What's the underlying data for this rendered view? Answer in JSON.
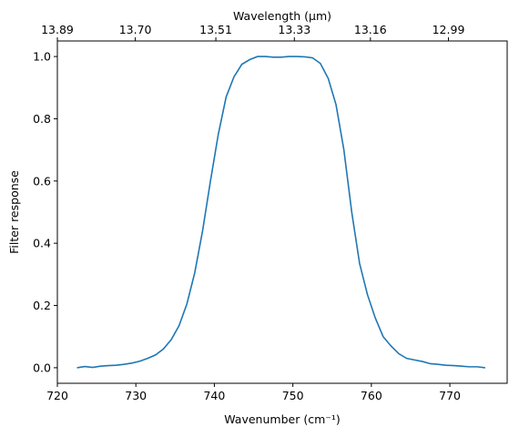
{
  "chart_data": {
    "type": "line",
    "xlabel": "Wavenumber (cm⁻¹)",
    "ylabel": "Filter response",
    "top_xlabel": "Wavelength (μm)",
    "xlim": [
      720,
      777.3
    ],
    "ylim": [
      -0.05,
      1.05
    ],
    "x_ticks": [
      720,
      730,
      740,
      750,
      760,
      770
    ],
    "x_tick_labels": [
      "720",
      "730",
      "740",
      "750",
      "760",
      "770"
    ],
    "y_ticks": [
      0.0,
      0.2,
      0.4,
      0.6,
      0.8,
      1.0
    ],
    "y_tick_labels": [
      "0.0",
      "0.2",
      "0.4",
      "0.6",
      "0.8",
      "1.0"
    ],
    "top_ticks": [
      {
        "wavenumber": 720.0,
        "label": "13.89"
      },
      {
        "wavenumber": 729.93,
        "label": "13.70"
      },
      {
        "wavenumber": 740.19,
        "label": "13.51"
      },
      {
        "wavenumber": 750.19,
        "label": "13.33"
      },
      {
        "wavenumber": 759.88,
        "label": "13.16"
      },
      {
        "wavenumber": 769.82,
        "label": "12.99"
      }
    ],
    "grid": false,
    "line_color": "#1f77b4",
    "series": [
      {
        "x": [
          722.5,
          723.5,
          724.5,
          725.5,
          726.5,
          727.5,
          728.5,
          729.5,
          730.5,
          731.5,
          732.5,
          733.5,
          734.5,
          735.5,
          736.5,
          737.5,
          738.5,
          739.5,
          740.5,
          741.5,
          742.5,
          743.5,
          744.5,
          745.5,
          746.5,
          747.5,
          748.5,
          749.5,
          750.5,
          751.5,
          752.5,
          753.5,
          754.5,
          755.5,
          756.5,
          757.5,
          758.5,
          759.5,
          760.5,
          761.5,
          762.5,
          763.5,
          764.5,
          765.5,
          766.5,
          767.5,
          768.5,
          769.5,
          770.5,
          771.5,
          772.5,
          773.5,
          774.5
        ],
        "y": [
          0.0,
          0.004,
          0.001,
          0.005,
          0.007,
          0.008,
          0.011,
          0.015,
          0.021,
          0.03,
          0.041,
          0.06,
          0.09,
          0.135,
          0.205,
          0.305,
          0.44,
          0.6,
          0.75,
          0.87,
          0.935,
          0.975,
          0.99,
          1.0,
          1.0,
          0.998,
          0.998,
          1.0,
          1.0,
          0.999,
          0.996,
          0.978,
          0.93,
          0.845,
          0.7,
          0.5,
          0.335,
          0.235,
          0.16,
          0.1,
          0.07,
          0.045,
          0.03,
          0.025,
          0.02,
          0.013,
          0.011,
          0.008,
          0.007,
          0.005,
          0.003,
          0.003,
          0.0
        ]
      }
    ]
  }
}
